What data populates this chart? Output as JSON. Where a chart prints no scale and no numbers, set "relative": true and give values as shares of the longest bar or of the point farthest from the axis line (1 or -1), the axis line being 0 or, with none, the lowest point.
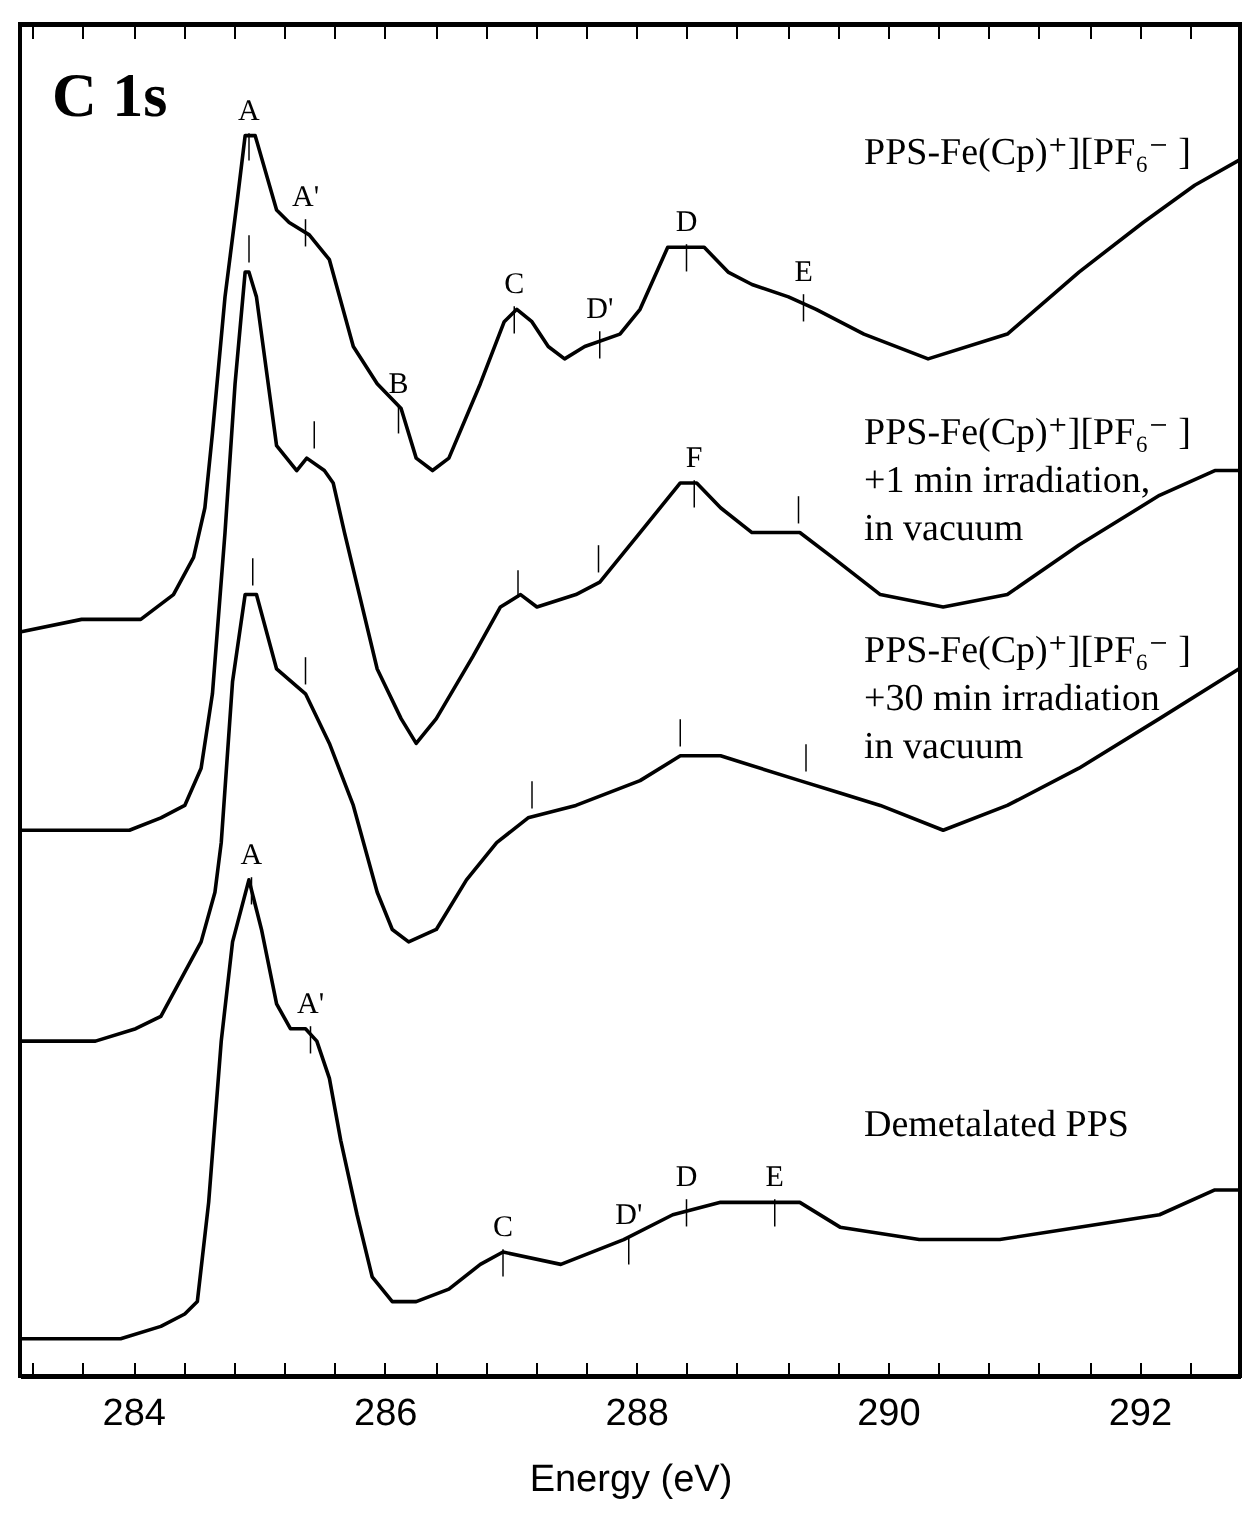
{
  "chart_data": {
    "type": "line",
    "title": "C 1s",
    "xlabel": "Energy (eV)",
    "relative": true,
    "grid": false,
    "marker": "none",
    "line_style": "solid",
    "xlim": [
      283.1,
      292.8
    ],
    "xticks": [
      {
        "value": 283.2,
        "label": null
      },
      {
        "value": 283.6,
        "label": null
      },
      284,
      {
        "value": 284.4,
        "label": null
      },
      {
        "value": 284.8,
        "label": null
      },
      {
        "value": 285.2,
        "label": null
      },
      {
        "value": 285.6,
        "label": null
      },
      286,
      {
        "value": 286.4,
        "label": null
      },
      {
        "value": 286.8,
        "label": null
      },
      {
        "value": 287.2,
        "label": null
      },
      {
        "value": 287.6,
        "label": null
      },
      288,
      {
        "value": 288.4,
        "label": null
      },
      {
        "value": 288.8,
        "label": null
      },
      {
        "value": 289.2,
        "label": null
      },
      {
        "value": 289.6,
        "label": null
      },
      290,
      {
        "value": 290.4,
        "label": null
      },
      {
        "value": 290.8,
        "label": null
      },
      {
        "value": 291.2,
        "label": null
      },
      {
        "value": 291.6,
        "label": null
      },
      292,
      {
        "value": 292.4,
        "label": null
      },
      {
        "value": 292.8,
        "label": null
      }
    ],
    "series": [
      {
        "name": "PPS-Fe(Cp)⁺][PF₆⁻ ]",
        "color": "#000000",
        "x": [
          283.11,
          283.59,
          284.06,
          284.32,
          284.48,
          284.57,
          284.63,
          284.73,
          284.83,
          284.89,
          284.97,
          285.14,
          285.24,
          285.4,
          285.56,
          285.75,
          285.94,
          286.13,
          286.25,
          286.38,
          286.51,
          286.76,
          286.95,
          287.05,
          287.17,
          287.3,
          287.43,
          287.59,
          287.87,
          288.03,
          288.25,
          288.4,
          288.54,
          288.73,
          288.92,
          289.21,
          289.43,
          289.81,
          290.32,
          290.95,
          291.52,
          292.03,
          292.44,
          292.79
        ],
        "values": [
          0.6,
          0.61,
          0.61,
          0.63,
          0.66,
          0.7,
          0.76,
          0.87,
          0.95,
          1.0,
          1.0,
          0.94,
          0.93,
          0.92,
          0.9,
          0.83,
          0.8,
          0.78,
          0.74,
          0.73,
          0.74,
          0.8,
          0.85,
          0.86,
          0.85,
          0.83,
          0.82,
          0.83,
          0.84,
          0.86,
          0.91,
          0.91,
          0.91,
          0.89,
          0.88,
          0.87,
          0.86,
          0.84,
          0.82,
          0.84,
          0.89,
          0.93,
          0.96,
          0.98
        ]
      },
      {
        "name": "PPS-Fe(Cp)⁺][PF₆⁻ ]\n+1 min irradiation,\nin vacuum",
        "color": "#000000",
        "x": [
          283.11,
          283.59,
          283.97,
          284.22,
          284.41,
          284.54,
          284.63,
          284.73,
          284.81,
          284.89,
          284.92,
          284.98,
          285.14,
          285.3,
          285.38,
          285.52,
          285.59,
          285.68,
          285.94,
          286.13,
          286.25,
          286.41,
          286.7,
          286.92,
          287.08,
          287.21,
          287.52,
          287.71,
          288.03,
          288.35,
          288.48,
          288.67,
          288.92,
          289.3,
          289.56,
          289.94,
          290.44,
          290.95,
          291.52,
          292.16,
          292.6,
          292.79
        ],
        "values": [
          0.44,
          0.44,
          0.44,
          0.45,
          0.46,
          0.49,
          0.55,
          0.68,
          0.8,
          0.89,
          0.89,
          0.87,
          0.75,
          0.73,
          0.74,
          0.73,
          0.72,
          0.68,
          0.57,
          0.53,
          0.51,
          0.53,
          0.58,
          0.62,
          0.63,
          0.62,
          0.63,
          0.64,
          0.68,
          0.72,
          0.72,
          0.7,
          0.68,
          0.68,
          0.66,
          0.63,
          0.62,
          0.63,
          0.67,
          0.71,
          0.73,
          0.73
        ]
      },
      {
        "name": "PPS-Fe(Cp)⁺][PF₆⁻ ]\n+30 min irradiation\nin vacuum",
        "color": "#000000",
        "x": [
          283.11,
          283.7,
          284.02,
          284.22,
          284.38,
          284.54,
          284.65,
          284.7,
          284.79,
          284.89,
          284.98,
          285.14,
          285.37,
          285.56,
          285.75,
          285.94,
          286.06,
          286.19,
          286.41,
          286.65,
          286.89,
          287.14,
          287.52,
          288.03,
          288.35,
          288.67,
          289.3,
          289.62,
          289.94,
          290.44,
          290.95,
          291.52,
          292.16,
          292.79
        ],
        "values": [
          0.27,
          0.27,
          0.28,
          0.29,
          0.32,
          0.35,
          0.39,
          0.43,
          0.56,
          0.63,
          0.63,
          0.57,
          0.55,
          0.51,
          0.46,
          0.39,
          0.36,
          0.35,
          0.36,
          0.4,
          0.43,
          0.45,
          0.46,
          0.48,
          0.5,
          0.5,
          0.48,
          0.47,
          0.46,
          0.44,
          0.46,
          0.49,
          0.53,
          0.57
        ]
      },
      {
        "name": "Demetalated PPS",
        "color": "#000000",
        "x": [
          283.11,
          283.59,
          283.9,
          284.22,
          284.41,
          284.51,
          284.6,
          284.7,
          284.79,
          284.92,
          285.02,
          285.14,
          285.25,
          285.37,
          285.46,
          285.56,
          285.65,
          285.78,
          285.9,
          286.06,
          286.25,
          286.51,
          286.76,
          286.94,
          287.4,
          287.9,
          288.29,
          288.67,
          289.11,
          289.3,
          289.62,
          290.25,
          290.89,
          291.52,
          292.16,
          292.6,
          292.79
        ],
        "values": [
          0.03,
          0.03,
          0.03,
          0.04,
          0.05,
          0.06,
          0.14,
          0.27,
          0.35,
          0.4,
          0.36,
          0.3,
          0.28,
          0.28,
          0.27,
          0.24,
          0.19,
          0.13,
          0.08,
          0.06,
          0.06,
          0.07,
          0.09,
          0.1,
          0.09,
          0.11,
          0.13,
          0.14,
          0.14,
          0.14,
          0.12,
          0.11,
          0.11,
          0.12,
          0.13,
          0.15,
          0.15
        ]
      }
    ],
    "annotations": [
      {
        "text": "A\n|",
        "x": 284.92,
        "y": 1.0
      },
      {
        "text": "A'\n|",
        "x": 285.37,
        "y": 0.93
      },
      {
        "text": "B\n|",
        "x": 286.11,
        "y": 0.78
      },
      {
        "text": "C\n|",
        "x": 287.03,
        "y": 0.86
      },
      {
        "text": "D'\n|",
        "x": 287.71,
        "y": 0.84
      },
      {
        "text": "D\n|",
        "x": 288.4,
        "y": 0.91
      },
      {
        "text": "E\n|",
        "x": 289.33,
        "y": 0.87
      },
      {
        "text": "|",
        "x": 284.92,
        "y": 0.89
      },
      {
        "text": "|",
        "x": 285.44,
        "y": 0.74
      },
      {
        "text": "|",
        "x": 287.06,
        "y": 0.62
      },
      {
        "text": "|",
        "x": 287.7,
        "y": 0.64
      },
      {
        "text": "F\n|",
        "x": 288.46,
        "y": 0.72
      },
      {
        "text": "|",
        "x": 289.29,
        "y": 0.68
      },
      {
        "text": "|",
        "x": 284.95,
        "y": 0.63
      },
      {
        "text": "|",
        "x": 285.37,
        "y": 0.55
      },
      {
        "text": "|",
        "x": 287.17,
        "y": 0.45
      },
      {
        "text": "|",
        "x": 288.35,
        "y": 0.5
      },
      {
        "text": "|",
        "x": 289.35,
        "y": 0.48
      },
      {
        "text": "A\n|",
        "x": 284.94,
        "y": 0.4
      },
      {
        "text": "A'\n|",
        "x": 285.41,
        "y": 0.28
      },
      {
        "text": "C\n|",
        "x": 286.94,
        "y": 0.1
      },
      {
        "text": "D'\n|",
        "x": 287.94,
        "y": 0.11
      },
      {
        "text": "D\n|",
        "x": 288.4,
        "y": 0.14
      },
      {
        "text": "E\n|",
        "x": 289.1,
        "y": 0.14
      }
    ]
  }
}
